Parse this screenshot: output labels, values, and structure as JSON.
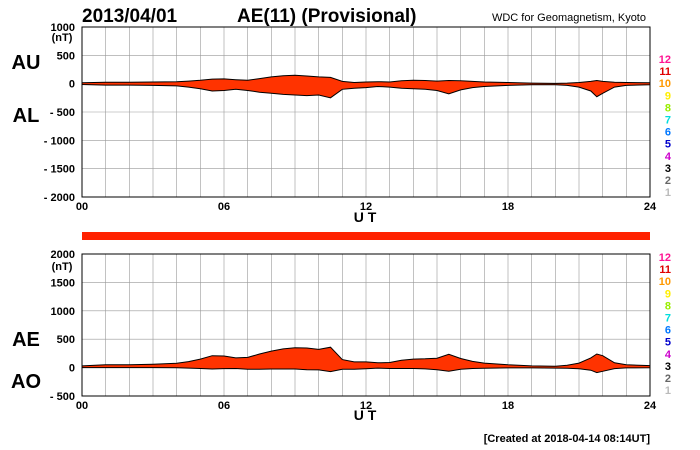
{
  "header": {
    "date": "2013/04/01",
    "title": "AE(11) (Provisional)",
    "source": "WDC for Geomagnetism, Kyoto"
  },
  "footer": {
    "created": "[Created at 2018-04-14 08:14UT]"
  },
  "colors": {
    "fill": "#ff3300",
    "outline": "#000000",
    "grid": "#999999",
    "bar": "#ff2200"
  },
  "station_numbers": [
    {
      "label": "12",
      "color": "#ff1493"
    },
    {
      "label": "11",
      "color": "#e00000"
    },
    {
      "label": "10",
      "color": "#ff9900"
    },
    {
      "label": "9",
      "color": "#ffee00"
    },
    {
      "label": "8",
      "color": "#99ee00"
    },
    {
      "label": "7",
      "color": "#00dddd"
    },
    {
      "label": "6",
      "color": "#0077ff"
    },
    {
      "label": "5",
      "color": "#0000cc"
    },
    {
      "label": "4",
      "color": "#cc00cc"
    },
    {
      "label": "3",
      "color": "#000000"
    },
    {
      "label": "2",
      "color": "#666666"
    },
    {
      "label": "1",
      "color": "#bbbbbb"
    }
  ],
  "chart_data": [
    {
      "type": "area",
      "name": "AU/AL panel",
      "xlabel": "U T",
      "ylabel": "(nT)",
      "series_labels": [
        "AU",
        "AL"
      ],
      "xlim": [
        0,
        24
      ],
      "ylim": [
        -2000,
        1000
      ],
      "xticks": [
        0,
        6,
        12,
        18,
        24
      ],
      "xtick_labels": [
        "00",
        "06",
        "12",
        "18",
        "24"
      ],
      "yticks": [
        1000,
        500,
        0,
        -500,
        -1000,
        -1500,
        -2000
      ],
      "ytick_labels": [
        "1000",
        "500",
        "0",
        "- 500",
        "- 1000",
        "- 1500",
        "- 2000"
      ],
      "x": [
        0,
        1,
        2,
        3,
        4,
        4.5,
        5,
        5.5,
        6,
        6.5,
        7,
        7.5,
        8,
        8.5,
        9,
        9.5,
        10,
        10.5,
        11,
        11.5,
        12,
        12.5,
        13,
        13.5,
        14,
        14.5,
        15,
        15.5,
        16,
        16.5,
        17,
        18,
        19,
        20,
        20.5,
        21,
        21.5,
        21.75,
        22,
        22.5,
        23,
        24
      ],
      "upper": [
        15,
        25,
        25,
        30,
        35,
        45,
        60,
        80,
        85,
        70,
        60,
        90,
        120,
        140,
        150,
        135,
        120,
        110,
        40,
        20,
        30,
        35,
        30,
        50,
        60,
        55,
        45,
        55,
        50,
        40,
        30,
        20,
        10,
        5,
        10,
        20,
        40,
        55,
        40,
        25,
        20,
        15
      ],
      "lower": [
        -15,
        -25,
        -25,
        -30,
        -40,
        -60,
        -90,
        -130,
        -120,
        -100,
        -120,
        -150,
        -170,
        -190,
        -200,
        -210,
        -200,
        -250,
        -100,
        -80,
        -70,
        -50,
        -60,
        -80,
        -90,
        -100,
        -120,
        -180,
        -110,
        -70,
        -50,
        -30,
        -20,
        -20,
        -30,
        -60,
        -130,
        -230,
        -170,
        -60,
        -30,
        -20
      ]
    },
    {
      "type": "area",
      "name": "AE/AO panel",
      "xlabel": "U T",
      "ylabel": "(nT)",
      "series_labels": [
        "AE",
        "AO"
      ],
      "xlim": [
        0,
        24
      ],
      "ylim": [
        -500,
        2000
      ],
      "xticks": [
        0,
        6,
        12,
        18,
        24
      ],
      "xtick_labels": [
        "00",
        "06",
        "12",
        "18",
        "24"
      ],
      "yticks": [
        2000,
        1500,
        1000,
        500,
        0,
        -500
      ],
      "ytick_labels": [
        "2000",
        "1500",
        "1000",
        "500",
        "0",
        "- 500"
      ],
      "x": [
        0,
        1,
        2,
        3,
        4,
        4.5,
        5,
        5.5,
        6,
        6.5,
        7,
        7.5,
        8,
        8.5,
        9,
        9.5,
        10,
        10.5,
        11,
        11.5,
        12,
        12.5,
        13,
        13.5,
        14,
        14.5,
        15,
        15.5,
        16,
        16.5,
        17,
        18,
        19,
        20,
        20.5,
        21,
        21.5,
        21.75,
        22,
        22.5,
        23,
        24
      ],
      "upper": [
        30,
        50,
        50,
        60,
        75,
        105,
        150,
        210,
        205,
        170,
        180,
        240,
        290,
        330,
        350,
        345,
        320,
        360,
        140,
        100,
        100,
        85,
        90,
        130,
        150,
        155,
        165,
        235,
        160,
        110,
        80,
        50,
        30,
        25,
        40,
        80,
        170,
        240,
        210,
        85,
        50,
        35
      ],
      "lower": [
        0,
        0,
        0,
        0,
        -3,
        -8,
        -15,
        -25,
        -18,
        -15,
        -30,
        -30,
        -25,
        -25,
        -25,
        -38,
        -40,
        -70,
        -30,
        -30,
        -20,
        -8,
        -15,
        -15,
        -15,
        -23,
        -38,
        -63,
        -30,
        -15,
        -10,
        -5,
        -5,
        -8,
        -10,
        -20,
        -45,
        -88,
        -65,
        -18,
        -5,
        -3
      ]
    }
  ]
}
